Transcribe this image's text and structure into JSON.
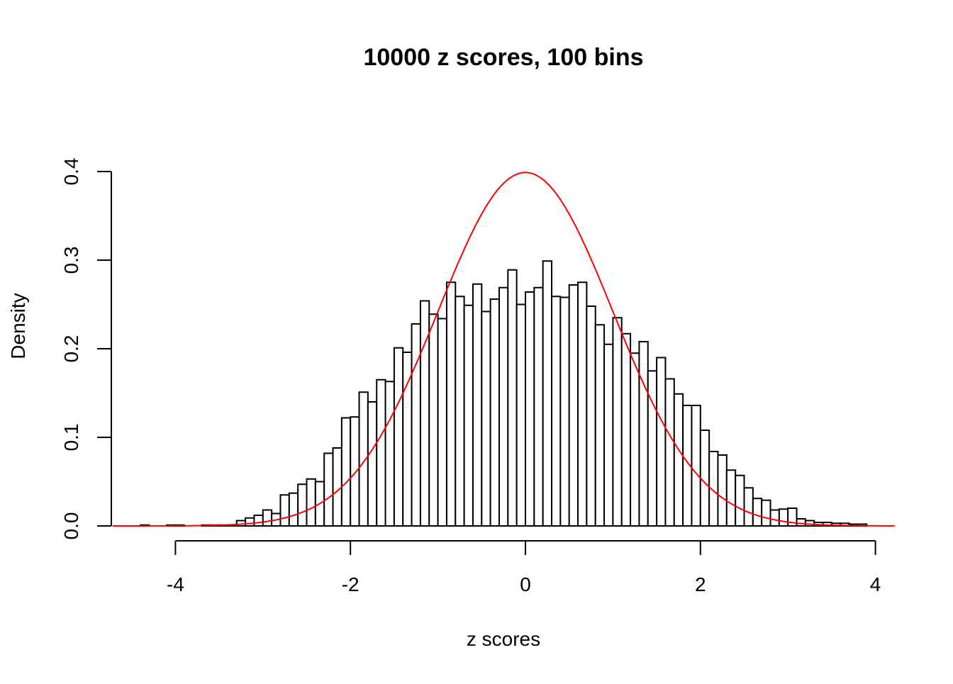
{
  "chart_data": {
    "type": "bar",
    "subtype": "histogram",
    "title": "10000 z scores, 100 bins",
    "xlabel": "z scores",
    "ylabel": "Density",
    "xticks": [
      -4,
      -2,
      0,
      2,
      4
    ],
    "xtick_labels": [
      "-4",
      "-2",
      "0",
      "2",
      "4"
    ],
    "yticks": [
      0.0,
      0.1,
      0.2,
      0.3,
      0.4
    ],
    "ytick_labels": [
      "0.0",
      "0.1",
      "0.2",
      "0.3",
      "0.4"
    ],
    "ylim": [
      0,
      0.4
    ],
    "grid": false,
    "bin_width": 0.1,
    "bin_start": -4.4,
    "densities": [
      0.001,
      0,
      0,
      0.001,
      0.001,
      0,
      0,
      0.001,
      0.001,
      0.001,
      0.001,
      0.006,
      0.009,
      0.012,
      0.018,
      0.014,
      0.035,
      0.037,
      0.047,
      0.053,
      0.05,
      0.082,
      0.088,
      0.122,
      0.123,
      0.151,
      0.14,
      0.165,
      0.163,
      0.201,
      0.196,
      0.228,
      0.254,
      0.239,
      0.234,
      0.275,
      0.259,
      0.249,
      0.273,
      0.242,
      0.256,
      0.269,
      0.289,
      0.25,
      0.264,
      0.269,
      0.299,
      0.259,
      0.258,
      0.272,
      0.275,
      0.248,
      0.227,
      0.205,
      0.235,
      0.217,
      0.195,
      0.208,
      0.175,
      0.19,
      0.166,
      0.149,
      0.136,
      0.136,
      0.108,
      0.084,
      0.08,
      0.063,
      0.057,
      0.043,
      0.031,
      0.029,
      0.018,
      0.019,
      0.02,
      0.008,
      0.006,
      0.004,
      0.004,
      0.003,
      0.003,
      0.002,
      0.002
    ],
    "bar_fill": "#ffffff",
    "bar_stroke": "#000000",
    "overlay": {
      "type": "line",
      "function": "standard normal density",
      "mean": 0,
      "sd": 1,
      "x_range": [
        -4.72,
        4.22
      ],
      "color": "#ff0000"
    }
  }
}
